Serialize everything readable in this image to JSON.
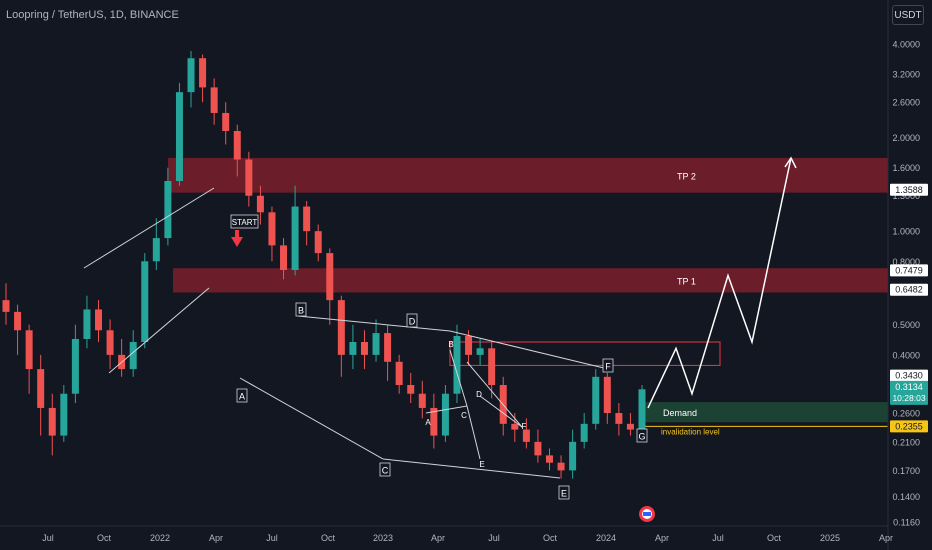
{
  "header": {
    "title": "Loopring / TetherUS, 1D, BINANCE",
    "currency": "USDT"
  },
  "chart_data": {
    "type": "candlestick",
    "title": "Loopring / TetherUS, 1D, BINANCE",
    "y_scale": "log",
    "ylim": [
      0.116,
      5.0
    ],
    "y_ticks": [
      {
        "value": 4.0,
        "label": "4.0000"
      },
      {
        "value": 3.2,
        "label": "3.2000"
      },
      {
        "value": 2.6,
        "label": "2.6000"
      },
      {
        "value": 2.0,
        "label": "2.0000"
      },
      {
        "value": 1.6,
        "label": "1.6000"
      },
      {
        "value": 1.3,
        "label": "1.3000"
      },
      {
        "value": 1.0,
        "label": "1.0000"
      },
      {
        "value": 0.8,
        "label": "0.8000"
      },
      {
        "value": 0.5,
        "label": "0.5000"
      },
      {
        "value": 0.4,
        "label": "0.4000"
      },
      {
        "value": 0.26,
        "label": "0.2600"
      },
      {
        "value": 0.21,
        "label": "0.2100"
      },
      {
        "value": 0.17,
        "label": "0.1700"
      },
      {
        "value": 0.14,
        "label": "0.1400"
      },
      {
        "value": 0.116,
        "label": "0.1160"
      }
    ],
    "x_ticks": [
      "Jul",
      "Oct",
      "2022",
      "Apr",
      "Jul",
      "Oct",
      "2023",
      "Apr",
      "Jul",
      "Oct",
      "2024",
      "Apr",
      "Jul",
      "Oct",
      "2025",
      "Apr"
    ],
    "price_labels": [
      {
        "label": "1.3588",
        "value": 1.3588,
        "style": "white"
      },
      {
        "label": "0.7479",
        "value": 0.7479,
        "style": "white"
      },
      {
        "label": "0.6482",
        "value": 0.6482,
        "style": "white"
      },
      {
        "label": "0.3430",
        "value": 0.343,
        "style": "white"
      },
      {
        "label": "0.3134",
        "sub": "10:28:03",
        "value": 0.3134,
        "style": "current"
      },
      {
        "label": "0.2355",
        "value": 0.2355,
        "style": "yellow"
      }
    ],
    "zones": [
      {
        "label": "TP 2",
        "low": 1.33,
        "high": 1.72,
        "type": "resistance"
      },
      {
        "label": "TP 1",
        "low": 0.635,
        "high": 0.76,
        "type": "resistance"
      },
      {
        "label": "Demand",
        "low": 0.243,
        "high": 0.282,
        "type": "support"
      }
    ],
    "invalidation": {
      "label": "invalidation level",
      "value": 0.2355
    },
    "wave_labels": {
      "big": [
        "A",
        "B",
        "C",
        "D",
        "E",
        "F",
        "G"
      ],
      "inner": [
        "A",
        "B",
        "C",
        "D",
        "E",
        "F"
      ],
      "start": "START"
    },
    "candles_ohlc_approx": [
      [
        0.6,
        0.55,
        0.68,
        0.5
      ],
      [
        0.55,
        0.48,
        0.58,
        0.4
      ],
      [
        0.48,
        0.36,
        0.5,
        0.3
      ],
      [
        0.36,
        0.27,
        0.4,
        0.22
      ],
      [
        0.27,
        0.22,
        0.3,
        0.19
      ],
      [
        0.22,
        0.3,
        0.32,
        0.21
      ],
      [
        0.3,
        0.45,
        0.5,
        0.28
      ],
      [
        0.45,
        0.56,
        0.62,
        0.42
      ],
      [
        0.56,
        0.48,
        0.6,
        0.44
      ],
      [
        0.48,
        0.4,
        0.52,
        0.36
      ],
      [
        0.4,
        0.36,
        0.45,
        0.34
      ],
      [
        0.36,
        0.44,
        0.48,
        0.34
      ],
      [
        0.44,
        0.8,
        0.85,
        0.42
      ],
      [
        0.8,
        0.95,
        1.1,
        0.75
      ],
      [
        0.95,
        1.45,
        1.6,
        0.9
      ],
      [
        1.45,
        2.8,
        3.0,
        1.4
      ],
      [
        2.8,
        3.6,
        3.8,
        2.5
      ],
      [
        3.6,
        2.9,
        3.7,
        2.6
      ],
      [
        2.9,
        2.4,
        3.1,
        2.2
      ],
      [
        2.4,
        2.1,
        2.6,
        1.9
      ],
      [
        2.1,
        1.7,
        2.2,
        1.5
      ],
      [
        1.7,
        1.3,
        1.8,
        1.2
      ],
      [
        1.3,
        1.15,
        1.4,
        1.05
      ],
      [
        1.15,
        0.9,
        1.2,
        0.8
      ],
      [
        0.9,
        0.75,
        0.95,
        0.7
      ],
      [
        0.75,
        1.2,
        1.4,
        0.72
      ],
      [
        1.2,
        1.0,
        1.25,
        0.9
      ],
      [
        1.0,
        0.85,
        1.05,
        0.8
      ],
      [
        0.85,
        0.6,
        0.88,
        0.5
      ],
      [
        0.6,
        0.4,
        0.62,
        0.34
      ],
      [
        0.4,
        0.44,
        0.5,
        0.36
      ],
      [
        0.44,
        0.4,
        0.48,
        0.36
      ],
      [
        0.4,
        0.47,
        0.52,
        0.38
      ],
      [
        0.47,
        0.38,
        0.5,
        0.33
      ],
      [
        0.38,
        0.32,
        0.4,
        0.3
      ],
      [
        0.32,
        0.3,
        0.35,
        0.28
      ],
      [
        0.3,
        0.27,
        0.33,
        0.25
      ],
      [
        0.27,
        0.22,
        0.3,
        0.2
      ],
      [
        0.22,
        0.3,
        0.32,
        0.21
      ],
      [
        0.3,
        0.46,
        0.5,
        0.28
      ],
      [
        0.46,
        0.4,
        0.48,
        0.37
      ],
      [
        0.4,
        0.42,
        0.45,
        0.37
      ],
      [
        0.42,
        0.32,
        0.44,
        0.29
      ],
      [
        0.32,
        0.24,
        0.34,
        0.22
      ],
      [
        0.24,
        0.23,
        0.26,
        0.21
      ],
      [
        0.23,
        0.21,
        0.25,
        0.2
      ],
      [
        0.21,
        0.19,
        0.23,
        0.18
      ],
      [
        0.19,
        0.18,
        0.2,
        0.17
      ],
      [
        0.18,
        0.17,
        0.19,
        0.16
      ],
      [
        0.17,
        0.21,
        0.23,
        0.16
      ],
      [
        0.21,
        0.24,
        0.26,
        0.2
      ],
      [
        0.24,
        0.34,
        0.36,
        0.23
      ],
      [
        0.34,
        0.26,
        0.35,
        0.24
      ],
      [
        0.26,
        0.24,
        0.28,
        0.22
      ],
      [
        0.24,
        0.23,
        0.26,
        0.22
      ],
      [
        0.23,
        0.31,
        0.32,
        0.23
      ]
    ],
    "projection_path": [
      0.27,
      0.42,
      0.3,
      0.72,
      0.44,
      1.72
    ],
    "legend": "none",
    "grid": false
  }
}
